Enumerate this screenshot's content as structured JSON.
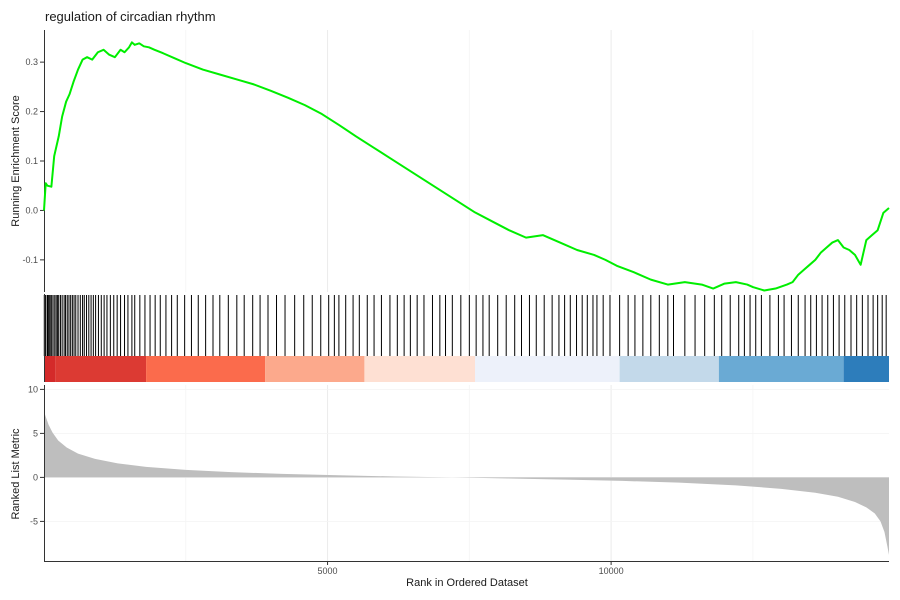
{
  "chart_data": [
    {
      "type": "line",
      "title": "regulation of circadian rhythm",
      "xlabel": "",
      "ylabel": "Running Enrichment Score",
      "xlim": [
        0,
        14900
      ],
      "ylim": [
        -0.165,
        0.365
      ],
      "yticks": [
        -0.1,
        0.0,
        0.1,
        0.2,
        0.3
      ],
      "ytick_labels": [
        "-0.1",
        "0.0",
        "0.1",
        "0.2",
        "0.3"
      ],
      "grid": true,
      "line_color": "#00ee00",
      "series": [
        {
          "x": [
            0,
            30,
            60,
            130,
            180,
            260,
            320,
            390,
            450,
            520,
            600,
            680,
            760,
            850,
            950,
            1050,
            1150,
            1250,
            1350,
            1420,
            1500,
            1550,
            1600,
            1680,
            1760,
            1850,
            1950,
            2100,
            2300,
            2500,
            2800,
            3100,
            3400,
            3700,
            4000,
            4300,
            4600,
            4900,
            5200,
            5500,
            5800,
            6100,
            6400,
            6700,
            7000,
            7300,
            7600,
            7900,
            8200,
            8500,
            8800,
            9100,
            9400,
            9700,
            9900,
            10100,
            10400,
            10700,
            11000,
            11300,
            11600,
            11800,
            12000,
            12200,
            12400,
            12500,
            12700,
            12900,
            13100,
            13200,
            13300,
            13400,
            13500,
            13600,
            13700,
            13800,
            13900,
            14000,
            14100,
            14200,
            14300,
            14400,
            14500,
            14600,
            14700,
            14800,
            14900
          ],
          "y": [
            0.0,
            0.055,
            0.05,
            0.048,
            0.11,
            0.15,
            0.19,
            0.22,
            0.235,
            0.26,
            0.285,
            0.305,
            0.31,
            0.305,
            0.32,
            0.325,
            0.315,
            0.31,
            0.325,
            0.32,
            0.33,
            0.34,
            0.335,
            0.338,
            0.332,
            0.33,
            0.325,
            0.318,
            0.308,
            0.298,
            0.285,
            0.275,
            0.265,
            0.255,
            0.242,
            0.228,
            0.213,
            0.195,
            0.173,
            0.15,
            0.128,
            0.106,
            0.084,
            0.062,
            0.04,
            0.018,
            -0.004,
            -0.022,
            -0.04,
            -0.055,
            -0.05,
            -0.065,
            -0.08,
            -0.09,
            -0.1,
            -0.112,
            -0.125,
            -0.14,
            -0.15,
            -0.145,
            -0.15,
            -0.158,
            -0.148,
            -0.145,
            -0.15,
            -0.155,
            -0.162,
            -0.158,
            -0.15,
            -0.145,
            -0.13,
            -0.12,
            -0.11,
            -0.1,
            -0.085,
            -0.075,
            -0.065,
            -0.06,
            -0.075,
            -0.08,
            -0.09,
            -0.11,
            -0.06,
            -0.05,
            -0.04,
            -0.005,
            0.005
          ]
        }
      ]
    },
    {
      "type": "other",
      "description_kind": "gene hit barcode and rank color bar",
      "hits": [
        5,
        25,
        55,
        70,
        90,
        110,
        135,
        160,
        190,
        215,
        240,
        260,
        290,
        320,
        355,
        380,
        410,
        440,
        470,
        500,
        530,
        560,
        600,
        640,
        680,
        710,
        750,
        790,
        830,
        870,
        910,
        960,
        1010,
        1060,
        1110,
        1170,
        1230,
        1290,
        1350,
        1420,
        1480,
        1550,
        1600,
        1690,
        1780,
        1870,
        1960,
        2050,
        2150,
        2250,
        2350,
        2480,
        2600,
        2720,
        2850,
        2980,
        3100,
        3250,
        3400,
        3530,
        3680,
        3810,
        3950,
        4100,
        4250,
        4420,
        4580,
        4730,
        4880,
        5020,
        5120,
        5200,
        5320,
        5450,
        5560,
        5700,
        5820,
        5950,
        6100,
        6230,
        6350,
        6460,
        6580,
        6700,
        6850,
        6980,
        7080,
        7200,
        7350,
        7500,
        7620,
        7740,
        7850,
        8000,
        8150,
        8300,
        8420,
        8560,
        8680,
        8820,
        8960,
        9080,
        9180,
        9280,
        9390,
        9490,
        9580,
        9680,
        9750,
        9860,
        9980,
        10150,
        10300,
        10420,
        10560,
        10700,
        10850,
        11000,
        11100,
        11300,
        11480,
        11650,
        11820,
        11950,
        12100,
        12250,
        12350,
        12450,
        12550,
        12650,
        12800,
        12950,
        13050,
        13180,
        13300,
        13420,
        13520,
        13620,
        13720,
        13820,
        13920,
        14020,
        14120,
        14230,
        14330,
        14430,
        14530,
        14620,
        14700,
        14780,
        14850
      ],
      "color_bands": [
        {
          "from": 0,
          "to": 200,
          "color": "#d42a2a"
        },
        {
          "from": 200,
          "to": 1800,
          "color": "#dc3a33"
        },
        {
          "from": 1800,
          "to": 3900,
          "color": "#fb6b4c"
        },
        {
          "from": 3900,
          "to": 5650,
          "color": "#fca98c"
        },
        {
          "from": 5650,
          "to": 7600,
          "color": "#fee0d3"
        },
        {
          "from": 7600,
          "to": 10150,
          "color": "#edf1fa"
        },
        {
          "from": 10150,
          "to": 11900,
          "color": "#c3d9ea"
        },
        {
          "from": 11900,
          "to": 14100,
          "color": "#6aaad4"
        },
        {
          "from": 14100,
          "to": 14900,
          "color": "#2d7dbb"
        }
      ]
    },
    {
      "type": "area",
      "xlabel": "Rank in Ordered Dataset",
      "ylabel": "Ranked List Metric",
      "xlim": [
        0,
        14900
      ],
      "ylim": [
        -9.5,
        10.5
      ],
      "yticks": [
        -5,
        0,
        5,
        10
      ],
      "ytick_labels": [
        "-5",
        "0",
        "5",
        "10"
      ],
      "xticks": [
        5000,
        10000
      ],
      "xtick_labels": [
        "5000",
        "10000"
      ],
      "fill_color": "#bebebe",
      "series": [
        {
          "x": [
            0,
            30,
            80,
            150,
            250,
            400,
            600,
            900,
            1300,
            1800,
            2500,
            3300,
            4200,
            5200,
            6200,
            7200,
            8200,
            9200,
            10200,
            11200,
            12200,
            13000,
            13600,
            14000,
            14300,
            14500,
            14650,
            14750,
            14820,
            14870,
            14900
          ],
          "y": [
            7.5,
            6.9,
            6.0,
            5.1,
            4.2,
            3.4,
            2.7,
            2.1,
            1.6,
            1.2,
            0.85,
            0.6,
            0.4,
            0.25,
            0.1,
            0.0,
            -0.12,
            -0.25,
            -0.4,
            -0.6,
            -0.9,
            -1.3,
            -1.75,
            -2.2,
            -2.8,
            -3.4,
            -4.1,
            -5.0,
            -6.2,
            -7.8,
            -8.8
          ]
        }
      ]
    }
  ]
}
